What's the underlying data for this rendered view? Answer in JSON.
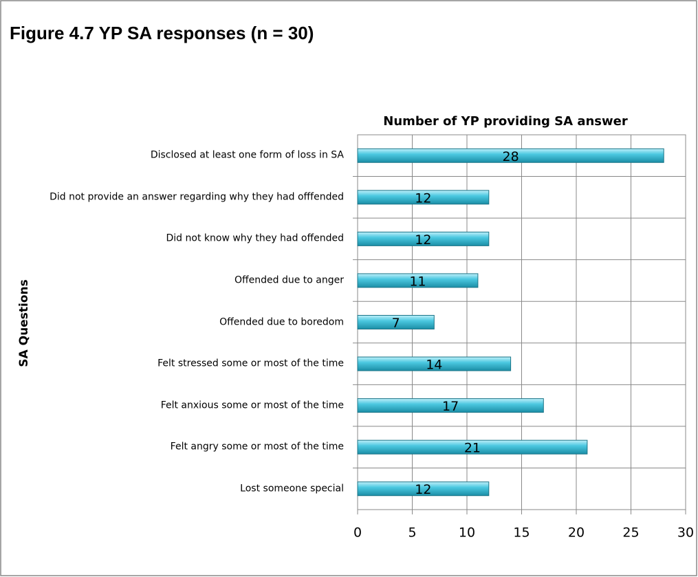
{
  "chart_data": {
    "type": "hbar",
    "title": "Figure 4.7 YP SA responses (n = 30)",
    "subtitle": "Number of YP providing SA answer",
    "y_label": "SA Questions",
    "categories": [
      "Disclosed at least one form of loss in SA",
      "Did not provide an answer regarding why they had offfended",
      "Did not know why they had offended",
      "Offended due to anger",
      "Offended due to boredom",
      "Felt stressed some or most of the time",
      "Felt anxious some or most of the time",
      "Felt angry some or most of the time",
      "Lost someone special"
    ],
    "values": [
      28,
      12,
      12,
      11,
      7,
      14,
      17,
      21,
      12
    ],
    "color": "#4bc8e0",
    "xlim": [
      0,
      30
    ],
    "xticks": [
      0,
      5,
      10,
      15,
      20,
      25,
      30
    ],
    "grid": true
  }
}
